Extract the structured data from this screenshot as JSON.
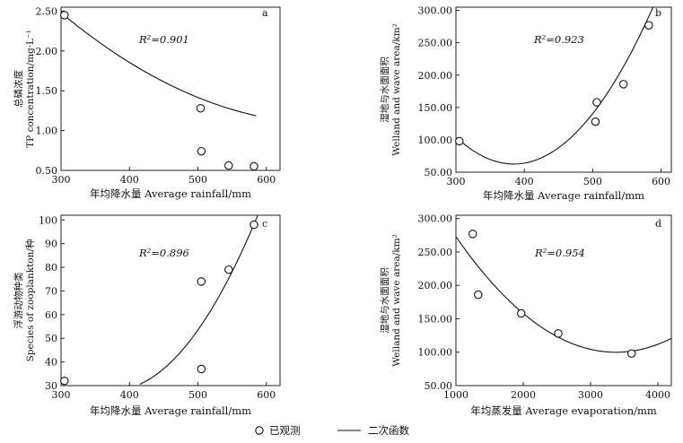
{
  "legend": {
    "observed_label": "已观测",
    "fit_label": "二次函数"
  },
  "chart_data": [
    {
      "panel": "a",
      "type": "scatter",
      "r2_label": "R²=0.901",
      "xlabel": "年均降水量 Average rainfall/mm",
      "ylabel_cn": "总磷浓度",
      "ylabel_en": "TP concentration/mg·L⁻¹",
      "xlim": [
        300,
        620
      ],
      "ylim": [
        0.5,
        2.55
      ],
      "xticks": [
        300,
        400,
        500,
        600
      ],
      "yticks": [
        0.5,
        1.0,
        1.5,
        2.0,
        2.5
      ],
      "ytick_labels": [
        "0.50",
        "1.00",
        "1.50",
        "2.00",
        "2.50"
      ],
      "points": [
        {
          "x": 305,
          "y": 2.45
        },
        {
          "x": 504,
          "y": 1.28
        },
        {
          "x": 505,
          "y": 0.74
        },
        {
          "x": 545,
          "y": 0.56
        },
        {
          "x": 582,
          "y": 0.55
        }
      ],
      "fit": {
        "a": 9.2e-06,
        "b": -0.01268,
        "c": 5.456,
        "x_range": [
          302,
          585
        ]
      }
    },
    {
      "panel": "b",
      "type": "scatter",
      "r2_label": "R²=0.923",
      "xlabel": "年均降水量 Average rainfall/mm",
      "ylabel_cn": "湿地与水面面积",
      "ylabel_en": "Welland and wave area/km²",
      "xlim": [
        300,
        615
      ],
      "ylim": [
        50,
        305
      ],
      "xticks": [
        300,
        400,
        500,
        600
      ],
      "yticks": [
        50,
        100,
        150,
        200,
        250,
        300
      ],
      "ytick_labels": [
        "50.00",
        "100.00",
        "150.00",
        "200.00",
        "250.00",
        "300.00"
      ],
      "points": [
        {
          "x": 305,
          "y": 98
        },
        {
          "x": 504,
          "y": 128
        },
        {
          "x": 506,
          "y": 158
        },
        {
          "x": 545,
          "y": 186
        },
        {
          "x": 582,
          "y": 277
        }
      ],
      "fit": {
        "a": 0.00585,
        "b": -4.5,
        "c": 928,
        "x_range": [
          305,
          603
        ]
      }
    },
    {
      "panel": "c",
      "type": "scatter",
      "r2_label": "R²=0.896",
      "xlabel": "年均降水量 Average rainfall/mm",
      "ylabel_cn": "浮游动物种类",
      "ylabel_en": "Species of zooplankton/种",
      "xlim": [
        300,
        620
      ],
      "ylim": [
        30,
        102
      ],
      "xticks": [
        300,
        400,
        500,
        600
      ],
      "yticks": [
        30,
        40,
        50,
        60,
        70,
        80,
        90,
        100
      ],
      "ytick_labels": [
        "30",
        "40",
        "50",
        "60",
        "70",
        "80",
        "90",
        "100"
      ],
      "points": [
        {
          "x": 305,
          "y": 32
        },
        {
          "x": 505,
          "y": 74
        },
        {
          "x": 505,
          "y": 37
        },
        {
          "x": 545,
          "y": 79
        },
        {
          "x": 582,
          "y": 98
        }
      ],
      "fit": {
        "a": 0.00165,
        "b": -1.24,
        "c": 261,
        "x_range": [
          415,
          590
        ]
      }
    },
    {
      "panel": "d",
      "type": "scatter",
      "r2_label": "R²=0.954",
      "xlabel": "年均蒸发量 Average evaporation/mm",
      "ylabel_cn": "湿地与水面面积",
      "ylabel_en": "Welland and wave area/km²",
      "xlim": [
        1000,
        4200
      ],
      "ylim": [
        50,
        305
      ],
      "xticks": [
        1000,
        2000,
        3000,
        4000
      ],
      "yticks": [
        50,
        100,
        150,
        200,
        250,
        300
      ],
      "ytick_labels": [
        "50.00",
        "100.00",
        "150.00",
        "200.00",
        "250.00",
        "300.00"
      ],
      "points": [
        {
          "x": 1250,
          "y": 277
        },
        {
          "x": 1330,
          "y": 186
        },
        {
          "x": 1970,
          "y": 158
        },
        {
          "x": 2520,
          "y": 128
        },
        {
          "x": 3610,
          "y": 98
        }
      ],
      "fit": {
        "a": 3.06e-05,
        "b": -0.2067,
        "c": 449,
        "x_range": [
          1000,
          4200
        ]
      }
    }
  ]
}
